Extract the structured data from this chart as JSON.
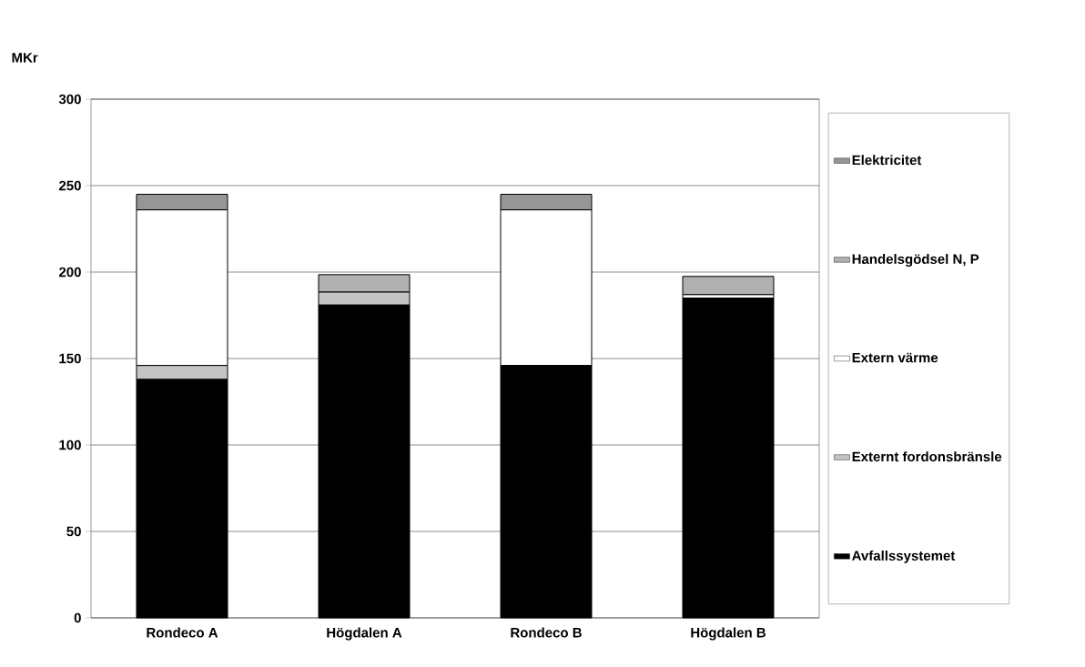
{
  "chart_data": {
    "type": "bar",
    "stacked": true,
    "ylabel": "MKr",
    "categories": [
      "Rondeco A",
      "Högdalen A",
      "Rondeco B",
      "Högdalen B"
    ],
    "series": [
      {
        "name": "Avfallssystemet",
        "color": "#000000",
        "values": [
          138,
          181,
          146,
          185
        ]
      },
      {
        "name": "Externt fordonsbränsle",
        "color": "#c4c4c4",
        "values": [
          8,
          7.5,
          null,
          null
        ]
      },
      {
        "name": "Extern värme",
        "color": "#ffffff",
        "values": [
          90,
          null,
          90,
          2
        ]
      },
      {
        "name": "Handelsgödsel N, P",
        "color": "#b0b0b0",
        "values": [
          null,
          10,
          null,
          10.5
        ]
      },
      {
        "name": "Elektricitet",
        "color": "#969696",
        "values": [
          9,
          null,
          9,
          null
        ]
      }
    ],
    "ylim": [
      0,
      300
    ],
    "yticks": [
      0,
      50,
      100,
      150,
      200,
      250,
      300
    ],
    "grid": "y",
    "legend": "right"
  }
}
